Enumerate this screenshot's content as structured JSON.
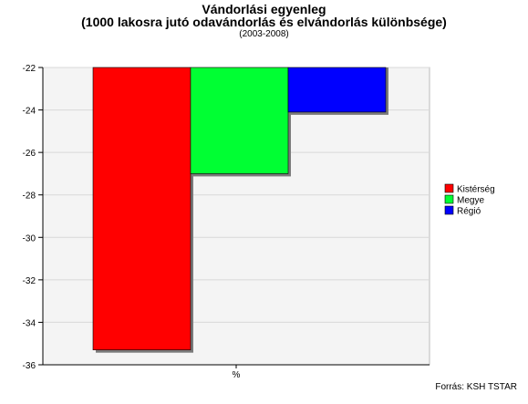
{
  "chart_data": {
    "type": "bar",
    "title": "Vándorlási egyenleg",
    "subtitle": "(1000 lakosra jutó odavándorlás és elvándorlás különbsége)",
    "period": "(2003-2008)",
    "xlabel": "%",
    "ylabel": "",
    "categories": [
      "%"
    ],
    "ylim": [
      -36,
      -22
    ],
    "yticks": [
      -22,
      -24,
      -26,
      -28,
      -30,
      -32,
      -34,
      -36
    ],
    "grid": true,
    "legend_position": "right",
    "series": [
      {
        "name": "Kistérség",
        "color": "#ff0000",
        "values": [
          -35.3
        ]
      },
      {
        "name": "Megye",
        "color": "#00ff33",
        "values": [
          -27.0
        ]
      },
      {
        "name": "Régió",
        "color": "#0000ff",
        "values": [
          -24.1
        ]
      }
    ],
    "source": "Forrás: KSH TSTAR"
  },
  "colors": {
    "plot_background": "#f4f4f4",
    "grid": "#d8d8d8",
    "bar_edge": "#000000"
  }
}
